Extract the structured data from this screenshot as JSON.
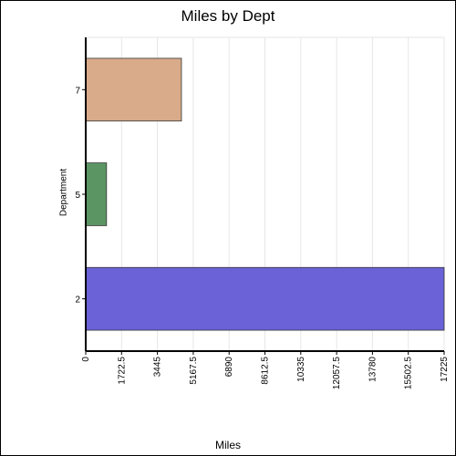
{
  "chart_data": {
    "type": "bar",
    "orientation": "horizontal",
    "title": "Miles by Dept",
    "xlabel": "Miles",
    "ylabel": "Department",
    "categories": [
      "7",
      "5",
      "2"
    ],
    "values": [
      4600,
      1000,
      17225
    ],
    "colors": [
      "#d9ab8a",
      "#5b9563",
      "#6a62d6"
    ],
    "xlim": [
      0,
      17225
    ],
    "xticks": [
      "0",
      "1722.5",
      "3445",
      "5167.5",
      "6890",
      "8612.5",
      "10335",
      "12057.5",
      "13780",
      "15502.5",
      "17225"
    ],
    "grid": true,
    "legend": "none"
  }
}
